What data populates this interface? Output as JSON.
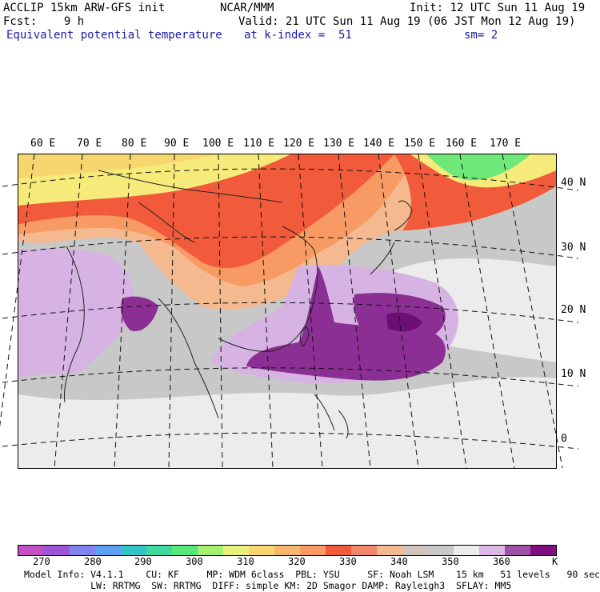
{
  "header": {
    "model": "ACCLIP 15km ARW-GFS init",
    "org": "NCAR/MMM",
    "init": "Init: 12 UTC Sun 11 Aug 19",
    "fcst": "Fcst:    9 h",
    "valid": "Valid: 21 UTC Sun 11 Aug 19 (06 JST Mon 12 Aug 19)",
    "field": "Equivalent potential temperature",
    "level": "at k-index =  51",
    "smooth": "sm= 2"
  },
  "map": {
    "lon_labels": [
      "60 E",
      "70 E",
      "80 E",
      "90 E",
      "100 E",
      "110 E",
      "120 E",
      "130 E",
      "140 E",
      "150 E",
      "160 E",
      "170 E"
    ],
    "lat_labels": [
      "40 N",
      "30 N",
      "20 N",
      "10 N",
      "0"
    ],
    "palette": {
      "hot_red": "#f25a3c",
      "orange": "#f79a63",
      "peach": "#f4b98e",
      "yellow": "#f6ea7a",
      "green": "#6fe87a",
      "gray": "#c8c8c8",
      "light_gray": "#ececec",
      "lilac": "#d6b3e2",
      "purple": "#8b2f95"
    }
  },
  "colorbar": {
    "unit": "K",
    "ticks": [
      "270",
      "280",
      "290",
      "300",
      "310",
      "320",
      "330",
      "340",
      "350",
      "360"
    ],
    "colors": [
      "#c44ec3",
      "#9b55d6",
      "#8181f0",
      "#5c9ff5",
      "#33c5c5",
      "#3ed8a0",
      "#55e87a",
      "#a4f06d",
      "#e8f27a",
      "#f7d66d",
      "#f7b66d",
      "#f79a63",
      "#f25a3c",
      "#f0866a",
      "#f4b98e",
      "#d0c4bd",
      "#c8c8c8",
      "#ececec",
      "#dcb8e6",
      "#a150a8",
      "#7e0f80"
    ]
  },
  "footer": {
    "line1": "Model Info: V4.1.1    CU: KF     MP: WDM 6class  PBL: YSU     SF: Noah LSM    15 km   51 levels   90 sec",
    "line2": "            LW: RRTMG  SW: RRTMG  DIFF: simple KM: 2D Smagor DAMP: Rayleigh3  SFLAY: MM5"
  }
}
